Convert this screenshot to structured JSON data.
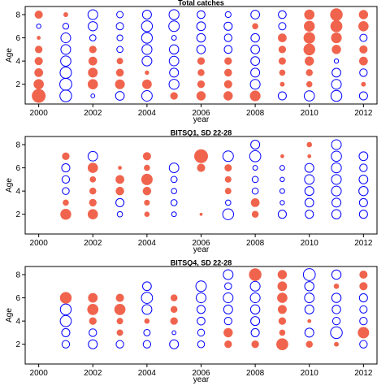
{
  "chart_data": [
    {
      "type": "scatter",
      "title": "Total catches",
      "xlabel": "year",
      "ylabel": "Age",
      "xlim": [
        1999.5,
        2012.5
      ],
      "ylim": [
        0.3,
        8.7
      ],
      "xticks": [
        2000,
        2002,
        2004,
        2006,
        2008,
        2010,
        2012
      ],
      "yticks": [
        2,
        4,
        6,
        8
      ],
      "colors": {
        "positive": "#f0644e",
        "negative": "#0000ff"
      },
      "points": [
        [
          2000,
          8,
          0.35
        ],
        [
          2000,
          7,
          -0.1
        ],
        [
          2000,
          6,
          0.08
        ],
        [
          2000,
          5,
          0.3
        ],
        [
          2000,
          4,
          0.35
        ],
        [
          2000,
          3,
          0.4
        ],
        [
          2000,
          2,
          0.55
        ],
        [
          2000,
          1,
          1.0
        ],
        [
          2001,
          8,
          0.12
        ],
        [
          2001,
          7,
          -0.18
        ],
        [
          2001,
          6,
          -0.5
        ],
        [
          2001,
          5,
          -0.5
        ],
        [
          2001,
          4,
          -0.55
        ],
        [
          2001,
          3,
          -0.68
        ],
        [
          2001,
          2,
          -0.75
        ],
        [
          2001,
          1,
          -0.72
        ],
        [
          2002,
          8,
          -0.5
        ],
        [
          2002,
          7,
          -0.45
        ],
        [
          2002,
          6,
          -0.2
        ],
        [
          2002,
          5,
          0.3
        ],
        [
          2002,
          4,
          0.4
        ],
        [
          2002,
          3,
          0.5
        ],
        [
          2002,
          2,
          0.55
        ],
        [
          2002,
          1,
          -0.08
        ],
        [
          2003,
          8,
          -0.22
        ],
        [
          2003,
          7,
          -0.28
        ],
        [
          2003,
          6,
          -0.18
        ],
        [
          2003,
          5,
          -0.2
        ],
        [
          2003,
          4,
          0.22
        ],
        [
          2003,
          3,
          0.32
        ],
        [
          2003,
          2,
          0.5
        ],
        [
          2003,
          1,
          -0.4
        ],
        [
          2004,
          8,
          -0.42
        ],
        [
          2004,
          7,
          -0.62
        ],
        [
          2004,
          6,
          -0.6
        ],
        [
          2004,
          5,
          -0.52
        ],
        [
          2004,
          4,
          -0.5
        ],
        [
          2004,
          3,
          0.1
        ],
        [
          2004,
          2,
          0.48
        ],
        [
          2004,
          1,
          -0.58
        ],
        [
          2005,
          8,
          -0.52
        ],
        [
          2005,
          7,
          -0.58
        ],
        [
          2005,
          6,
          -0.12
        ],
        [
          2005,
          5,
          -0.45
        ],
        [
          2005,
          4,
          -0.48
        ],
        [
          2005,
          3,
          -0.42
        ],
        [
          2005,
          2,
          -0.52
        ],
        [
          2005,
          1,
          0.3
        ],
        [
          2006,
          8,
          -0.32
        ],
        [
          2006,
          7,
          -0.4
        ],
        [
          2006,
          6,
          -0.38
        ],
        [
          2006,
          5,
          -0.38
        ],
        [
          2006,
          4,
          0.3
        ],
        [
          2006,
          3,
          0.25
        ],
        [
          2006,
          2,
          0.3
        ],
        [
          2006,
          1,
          0.45
        ],
        [
          2007,
          8,
          -0.18
        ],
        [
          2007,
          7,
          -0.35
        ],
        [
          2007,
          6,
          -0.3
        ],
        [
          2007,
          5,
          -0.32
        ],
        [
          2007,
          4,
          0.3
        ],
        [
          2007,
          3,
          0.32
        ],
        [
          2007,
          2,
          0.35
        ],
        [
          2007,
          1,
          0.45
        ],
        [
          2008,
          8,
          -0.4
        ],
        [
          2008,
          7,
          0.2
        ],
        [
          2008,
          6,
          -0.38
        ],
        [
          2008,
          5,
          -0.4
        ],
        [
          2008,
          4,
          -0.4
        ],
        [
          2008,
          3,
          -0.42
        ],
        [
          2008,
          2,
          -0.5
        ],
        [
          2008,
          1,
          0.6
        ],
        [
          2009,
          8,
          -0.32
        ],
        [
          2009,
          7,
          -0.28
        ],
        [
          2009,
          6,
          0.4
        ],
        [
          2009,
          5,
          0.3
        ],
        [
          2009,
          4,
          0.28
        ],
        [
          2009,
          3,
          0.2
        ],
        [
          2009,
          2,
          0.12
        ],
        [
          2009,
          1,
          -0.35
        ],
        [
          2010,
          8,
          0.55
        ],
        [
          2010,
          7,
          0.62
        ],
        [
          2010,
          6,
          0.7
        ],
        [
          2010,
          5,
          0.72
        ],
        [
          2010,
          4,
          0.45
        ],
        [
          2010,
          3,
          0.25
        ],
        [
          2010,
          2,
          0.2
        ],
        [
          2010,
          1,
          -0.55
        ],
        [
          2011,
          8,
          0.82
        ],
        [
          2011,
          7,
          0.75
        ],
        [
          2011,
          6,
          0.6
        ],
        [
          2011,
          5,
          0.45
        ],
        [
          2011,
          4,
          -0.1
        ],
        [
          2011,
          3,
          -0.4
        ],
        [
          2011,
          2,
          -0.5
        ],
        [
          2011,
          1,
          -0.62
        ],
        [
          2012,
          8,
          0.45
        ],
        [
          2012,
          7,
          0.55
        ],
        [
          2012,
          6,
          -0.28
        ],
        [
          2012,
          5,
          0.35
        ],
        [
          2012,
          4,
          0.4
        ],
        [
          2012,
          3,
          -0.3
        ],
        [
          2012,
          2,
          0.12
        ],
        [
          2012,
          1,
          -0.35
        ]
      ]
    },
    {
      "type": "scatter",
      "title": "BITSQ1, SD 22-28",
      "xlabel": "year",
      "ylabel": "Age",
      "xlim": [
        1999.5,
        2012.5
      ],
      "ylim": [
        0.3,
        8.7
      ],
      "xticks": [
        2000,
        2002,
        2004,
        2006,
        2008,
        2010,
        2012
      ],
      "yticks": [
        2,
        4,
        6,
        8
      ],
      "colors": {
        "positive": "#f0644e",
        "negative": "#0000ff"
      },
      "points": [
        [
          2001,
          7,
          0.3
        ],
        [
          2001,
          6,
          -0.35
        ],
        [
          2001,
          5,
          -0.3
        ],
        [
          2001,
          4,
          -0.25
        ],
        [
          2001,
          3,
          0.2
        ],
        [
          2001,
          2,
          0.62
        ],
        [
          2002,
          7,
          -0.48
        ],
        [
          2002,
          6,
          0.55
        ],
        [
          2002,
          5,
          0.2
        ],
        [
          2002,
          4,
          0.25
        ],
        [
          2002,
          3,
          0.3
        ],
        [
          2002,
          2,
          0.55
        ],
        [
          2003,
          6,
          0.08
        ],
        [
          2003,
          5,
          0.4
        ],
        [
          2003,
          4,
          0.38
        ],
        [
          2003,
          3,
          -0.35
        ],
        [
          2003,
          2,
          -0.15
        ],
        [
          2004,
          7,
          0.35
        ],
        [
          2004,
          6,
          0.2
        ],
        [
          2004,
          5,
          0.68
        ],
        [
          2004,
          4,
          0.38
        ],
        [
          2004,
          3,
          0.18
        ],
        [
          2004,
          2,
          0.15
        ],
        [
          2005,
          6,
          -0.48
        ],
        [
          2005,
          5,
          -0.2
        ],
        [
          2005,
          4,
          -0.15
        ],
        [
          2005,
          3,
          -0.2
        ],
        [
          2005,
          2,
          -0.12
        ],
        [
          2006,
          7,
          1.0
        ],
        [
          2006,
          6,
          0.35
        ],
        [
          2006,
          2,
          0.05
        ],
        [
          2007,
          7,
          -0.58
        ],
        [
          2007,
          6,
          0.28
        ],
        [
          2007,
          5,
          0.22
        ],
        [
          2007,
          4,
          0.22
        ],
        [
          2007,
          3,
          -0.15
        ],
        [
          2007,
          2,
          -0.62
        ],
        [
          2008,
          8,
          -0.42
        ],
        [
          2008,
          7,
          -0.65
        ],
        [
          2008,
          6,
          -0.12
        ],
        [
          2008,
          5,
          -0.2
        ],
        [
          2008,
          4,
          -0.2
        ],
        [
          2008,
          3,
          0.4
        ],
        [
          2008,
          2,
          0.25
        ],
        [
          2009,
          7,
          0.08
        ],
        [
          2009,
          6,
          -0.12
        ],
        [
          2009,
          5,
          -0.1
        ],
        [
          2009,
          4,
          -0.12
        ],
        [
          2009,
          3,
          -0.1
        ],
        [
          2009,
          2,
          -0.35
        ],
        [
          2010,
          8,
          0.15
        ],
        [
          2010,
          7,
          0.08
        ],
        [
          2010,
          6,
          -0.42
        ],
        [
          2010,
          5,
          -0.48
        ],
        [
          2010,
          4,
          -0.42
        ],
        [
          2010,
          3,
          -0.4
        ],
        [
          2010,
          2,
          -0.35
        ],
        [
          2011,
          8,
          -0.5
        ],
        [
          2011,
          7,
          -0.55
        ],
        [
          2011,
          6,
          -0.52
        ],
        [
          2011,
          5,
          -0.5
        ],
        [
          2011,
          4,
          -0.5
        ],
        [
          2011,
          3,
          -0.42
        ],
        [
          2011,
          2,
          -0.45
        ],
        [
          2012,
          7,
          -0.4
        ],
        [
          2012,
          6,
          -0.3
        ],
        [
          2012,
          5,
          -0.4
        ],
        [
          2012,
          4,
          -0.45
        ],
        [
          2012,
          3,
          -0.35
        ],
        [
          2012,
          2,
          -0.35
        ]
      ]
    },
    {
      "type": "scatter",
      "title": "BITSQ4, SD 22-28",
      "xlabel": "year",
      "ylabel": "Age",
      "xlim": [
        1999.5,
        2012.5
      ],
      "ylim": [
        0.3,
        8.7
      ],
      "xticks": [
        2000,
        2002,
        2004,
        2006,
        2008,
        2010,
        2012
      ],
      "yticks": [
        2,
        4,
        6,
        8
      ],
      "colors": {
        "positive": "#f0644e",
        "negative": "#0000ff"
      },
      "points": [
        [
          2001,
          6,
          0.72
        ],
        [
          2001,
          5,
          -0.62
        ],
        [
          2001,
          4,
          -0.65
        ],
        [
          2001,
          3,
          -0.35
        ],
        [
          2001,
          2,
          -0.3
        ],
        [
          2002,
          6,
          0.48
        ],
        [
          2002,
          5,
          0.65
        ],
        [
          2002,
          4,
          0.3
        ],
        [
          2002,
          3,
          -0.3
        ],
        [
          2002,
          2,
          -0.42
        ],
        [
          2003,
          6,
          0.35
        ],
        [
          2003,
          5,
          0.65
        ],
        [
          2003,
          4,
          0.22
        ],
        [
          2003,
          3,
          0.22
        ],
        [
          2003,
          2,
          -0.3
        ],
        [
          2004,
          7,
          -0.4
        ],
        [
          2004,
          6,
          -0.65
        ],
        [
          2004,
          5,
          -0.5
        ],
        [
          2004,
          4,
          0.15
        ],
        [
          2004,
          3,
          -0.22
        ],
        [
          2004,
          2,
          -0.3
        ],
        [
          2005,
          6,
          0.25
        ],
        [
          2005,
          5,
          0.25
        ],
        [
          2005,
          4,
          0.3
        ],
        [
          2005,
          3,
          -0.08
        ],
        [
          2005,
          2,
          -0.42
        ],
        [
          2006,
          7,
          -0.58
        ],
        [
          2006,
          6,
          -0.5
        ],
        [
          2006,
          5,
          -0.35
        ],
        [
          2006,
          4,
          -0.32
        ],
        [
          2006,
          3,
          -0.25
        ],
        [
          2006,
          2,
          -0.25
        ],
        [
          2007,
          8,
          -0.5
        ],
        [
          2007,
          7,
          -0.25
        ],
        [
          2007,
          6,
          -0.5
        ],
        [
          2007,
          5,
          -0.42
        ],
        [
          2007,
          4,
          -0.3
        ],
        [
          2007,
          3,
          0.45
        ],
        [
          2007,
          2,
          0.3
        ],
        [
          2008,
          8,
          0.82
        ],
        [
          2008,
          7,
          -0.5
        ],
        [
          2008,
          6,
          -0.5
        ],
        [
          2008,
          5,
          -0.45
        ],
        [
          2008,
          4,
          -0.42
        ],
        [
          2008,
          3,
          -0.35
        ],
        [
          2008,
          2,
          0.3
        ],
        [
          2009,
          8,
          0.45
        ],
        [
          2009,
          7,
          0.48
        ],
        [
          2009,
          6,
          0.55
        ],
        [
          2009,
          5,
          0.42
        ],
        [
          2009,
          4,
          0.3
        ],
        [
          2009,
          3,
          0.2
        ],
        [
          2009,
          2,
          0.75
        ],
        [
          2010,
          8,
          -0.75
        ],
        [
          2010,
          7,
          -0.45
        ],
        [
          2010,
          6,
          -0.48
        ],
        [
          2010,
          5,
          -0.42
        ],
        [
          2010,
          4,
          0.08
        ],
        [
          2010,
          3,
          -0.42
        ],
        [
          2010,
          2,
          0.25
        ],
        [
          2011,
          8,
          -0.45
        ],
        [
          2011,
          7,
          0.15
        ],
        [
          2011,
          6,
          -0.45
        ],
        [
          2011,
          5,
          -0.38
        ],
        [
          2011,
          4,
          -0.3
        ],
        [
          2011,
          3,
          -0.72
        ],
        [
          2011,
          2,
          0.12
        ],
        [
          2012,
          8,
          0.35
        ],
        [
          2012,
          7,
          0.35
        ],
        [
          2012,
          6,
          -0.35
        ],
        [
          2012,
          5,
          -0.28
        ],
        [
          2012,
          4,
          -0.3
        ],
        [
          2012,
          3,
          0.68
        ],
        [
          2012,
          2,
          -0.3
        ]
      ]
    }
  ]
}
